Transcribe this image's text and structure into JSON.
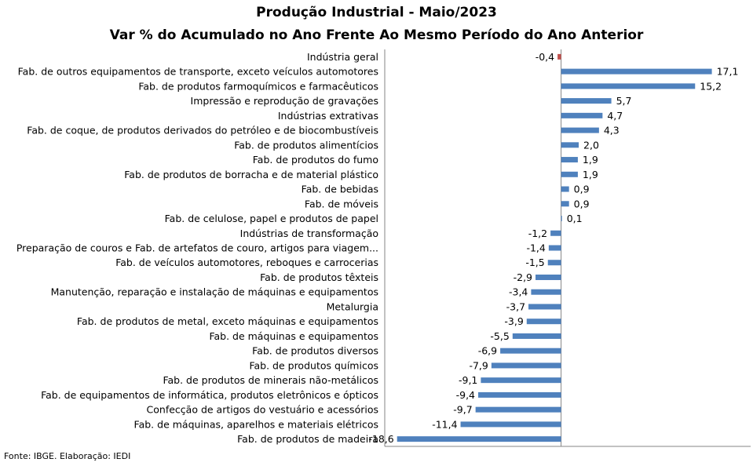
{
  "chart_data": {
    "type": "bar",
    "orientation": "horizontal",
    "title": "Produção Industrial - Maio/2023",
    "subtitle": "Var % do Acumulado no Ano Frente Ao Mesmo Período do Ano Anterior",
    "source": "Fonte: IBGE. Elaboração: IEDI",
    "categories": [
      "Indústria geral",
      "Fab. de outros equipamentos de transporte, exceto veículos automotores",
      "Fab. de produtos farmoquímicos e farmacêuticos",
      "Impressão e reprodução de gravações",
      "Indústrias extrativas",
      "Fab. de coque, de produtos derivados do petróleo e de biocombustíveis",
      "Fab. de produtos alimentícios",
      "Fab. de produtos do fumo",
      "Fab. de produtos de borracha e de material plástico",
      "Fab. de bebidas",
      "Fab. de móveis",
      "Fab. de celulose, papel e produtos de papel",
      "Indústrias de transformação",
      "Preparação de couros e Fab. de artefatos de couro, artigos para viagem...",
      "Fab. de veículos automotores, reboques e carrocerias",
      "Fab. de produtos têxteis",
      "Manutenção, reparação e instalação de máquinas e equipamentos",
      "Metalurgia",
      "Fab. de produtos de metal, exceto máquinas e equipamentos",
      "Fab. de máquinas e equipamentos",
      "Fab. de produtos diversos",
      "Fab. de produtos químicos",
      "Fab. de produtos de minerais não-metálicos",
      "Fab. de equipamentos de informática, produtos eletrônicos e ópticos",
      "Confecção de artigos do vestuário e acessórios",
      "Fab. de máquinas, aparelhos e materiais elétricos",
      "Fab. de produtos de madeira"
    ],
    "values": [
      -0.4,
      17.1,
      15.2,
      5.7,
      4.7,
      4.3,
      2.0,
      1.9,
      1.9,
      0.9,
      0.9,
      0.1,
      -1.2,
      -1.4,
      -1.5,
      -2.9,
      -3.4,
      -3.7,
      -3.9,
      -5.5,
      -6.9,
      -7.9,
      -9.1,
      -9.4,
      -9.7,
      -11.4,
      -18.6
    ],
    "value_labels": [
      "-0,4",
      "17,1",
      "15,2",
      "5,7",
      "4,7",
      "4,3",
      "2,0",
      "1,9",
      "1,9",
      "0,9",
      "0,9",
      "0,1",
      "-1,2",
      "-1,4",
      "-1,5",
      "-2,9",
      "-3,4",
      "-3,7",
      "-3,9",
      "-5,5",
      "-6,9",
      "-7,9",
      "-9,1",
      "-9,4",
      "-9,7",
      "-11,4",
      "-18,6"
    ],
    "highlight_index": 0,
    "colors": {
      "bar": "#4f81bd",
      "highlight": "#c0504d",
      "axis": "#868686"
    },
    "xlim": [
      -20,
      21.5
    ],
    "grid": false,
    "legend": "none"
  }
}
